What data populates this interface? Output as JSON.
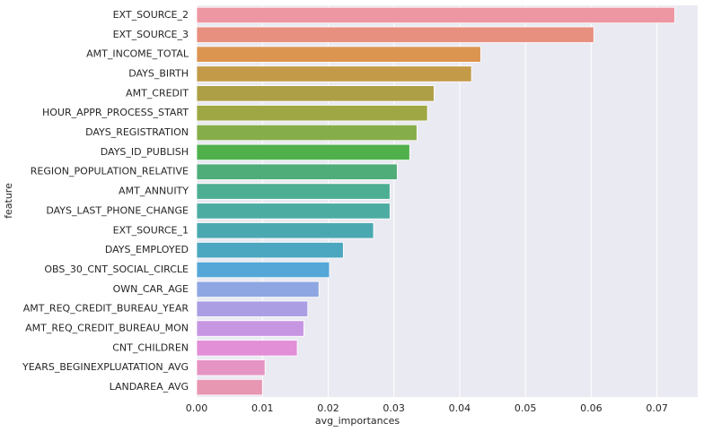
{
  "chart_data": {
    "type": "barh",
    "xlabel": "avg_importances",
    "ylabel": "feature",
    "categories": [
      "EXT_SOURCE_2",
      "EXT_SOURCE_3",
      "AMT_INCOME_TOTAL",
      "DAYS_BIRTH",
      "AMT_CREDIT",
      "HOUR_APPR_PROCESS_START",
      "DAYS_REGISTRATION",
      "DAYS_ID_PUBLISH",
      "REGION_POPULATION_RELATIVE",
      "AMT_ANNUITY",
      "DAYS_LAST_PHONE_CHANGE",
      "EXT_SOURCE_1",
      "DAYS_EMPLOYED",
      "OBS_30_CNT_SOCIAL_CIRCLE",
      "OWN_CAR_AGE",
      "AMT_REQ_CREDIT_BUREAU_YEAR",
      "AMT_REQ_CREDIT_BUREAU_MON",
      "CNT_CHILDREN",
      "YEARS_BEGINEXPLUATATION_AVG",
      "LANDAREA_AVG"
    ],
    "values": [
      0.0727,
      0.0604,
      0.0432,
      0.0418,
      0.0361,
      0.0351,
      0.0335,
      0.0324,
      0.0305,
      0.0294,
      0.0294,
      0.0269,
      0.0223,
      0.0202,
      0.0186,
      0.0169,
      0.0163,
      0.0153,
      0.0104,
      0.01
    ],
    "colors": [
      "#ed97a2",
      "#e8907f",
      "#dc9451",
      "#c39a48",
      "#ad9f45",
      "#9ea743",
      "#85ad4a",
      "#4fb04c",
      "#4fad7a",
      "#4cae92",
      "#4caca2",
      "#4aa9b0",
      "#4ba6bf",
      "#55a7d8",
      "#8ea7e2",
      "#ab9ee3",
      "#c796e3",
      "#e28fd8",
      "#e594c3",
      "#e797b2"
    ],
    "xlim": [
      0,
      0.0762
    ],
    "xticks": [
      {
        "value": 0,
        "label": "0.00"
      },
      {
        "value": 0.01,
        "label": "0.01"
      },
      {
        "value": 0.02,
        "label": "0.02"
      },
      {
        "value": 0.03,
        "label": "0.03"
      },
      {
        "value": 0.04,
        "label": "0.04"
      },
      {
        "value": 0.05,
        "label": "0.05"
      },
      {
        "value": 0.06,
        "label": "0.06"
      },
      {
        "value": 0.07,
        "label": "0.07"
      }
    ],
    "grid": true
  }
}
